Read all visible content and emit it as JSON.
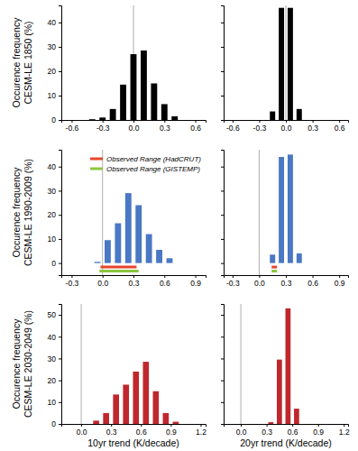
{
  "chart_data": [
    {
      "type": "histogram",
      "color": "#000000",
      "ylabel": [
        "Occurence frequency",
        "CESM-LE 1850 (%)"
      ],
      "bins": [
        -0.45,
        -0.35,
        -0.25,
        -0.15,
        -0.05,
        0.05,
        0.15,
        0.25,
        0.35,
        0.45
      ],
      "values": [
        0.3,
        1,
        4.5,
        14.5,
        27,
        28.5,
        15,
        6.5,
        1.5
      ],
      "xlim": [
        -0.7,
        0.7
      ],
      "xticks": [
        -0.6,
        -0.3,
        {
          "value": 0,
          "label": "0.0"
        },
        0.3,
        0.6
      ],
      "ylim": [
        0,
        47
      ],
      "yticks": [
        0,
        10,
        20,
        30,
        40
      ],
      "vline": 0
    },
    {
      "type": "histogram",
      "color": "#000000",
      "bins": [
        -0.2,
        -0.1,
        0,
        0.1,
        0.2
      ],
      "values": [
        3.5,
        46,
        46,
        4.5
      ],
      "xlim": [
        -0.7,
        0.7
      ],
      "xticks": [
        -0.6,
        -0.3,
        {
          "value": 0,
          "label": "0.0"
        },
        0.3,
        0.6
      ],
      "ylim": [
        0,
        47
      ],
      "yticks": [
        0,
        10,
        20,
        30,
        40
      ],
      "vline": 0,
      "tick_labels": "x"
    },
    {
      "type": "histogram",
      "color": "#4a78c4",
      "ylabel": [
        "Occurence frequency",
        "CESM-LE 1990-2009 (%)"
      ],
      "bins": [
        -0.1,
        0,
        0.1,
        0.2,
        0.3,
        0.4,
        0.5,
        0.6,
        0.7
      ],
      "values": [
        0.5,
        9.5,
        16.5,
        29,
        24,
        12,
        5.5,
        2
      ],
      "xlim": [
        -0.4,
        1.0
      ],
      "xticks": [
        -0.3,
        {
          "value": 0,
          "label": "0.0"
        },
        0.3,
        0.6,
        0.9
      ],
      "ylim": [
        -5,
        47
      ],
      "yticks": [
        0,
        10,
        20,
        30,
        40
      ],
      "vline": 0,
      "observed_ranges": [
        {
          "name": "Observed Range (HadCRUT)",
          "color": "#e8452c",
          "range": [
            -0.02,
            0.33
          ]
        },
        {
          "name": "Observed Range (GISTEMP)",
          "color": "#8cc63f",
          "range": [
            -0.03,
            0.35
          ]
        }
      ],
      "legend": "upper right"
    },
    {
      "type": "histogram",
      "color": "#4a78c4",
      "bins": [
        0.1,
        0.2,
        0.3,
        0.4,
        0.5
      ],
      "values": [
        3.5,
        44,
        45,
        4
      ],
      "xlim": [
        -0.4,
        1.0
      ],
      "xticks": [
        -0.3,
        {
          "value": 0,
          "label": "0.0"
        },
        0.3,
        0.6,
        0.9
      ],
      "ylim": [
        -5,
        47
      ],
      "yticks": [
        0,
        10,
        20,
        30,
        40
      ],
      "vline": 0,
      "tick_labels": "x",
      "observed_ranges": [
        {
          "color": "#e8452c",
          "range": [
            0.14,
            0.2
          ]
        },
        {
          "color": "#8cc63f",
          "range": [
            0.14,
            0.2
          ]
        }
      ]
    },
    {
      "type": "histogram",
      "color": "#c0272d",
      "ylabel": [
        "Occurence frequency",
        "CESM-LE 2030-2049 (%)"
      ],
      "xlabel": "10yr trend (K/decade)",
      "bins": [
        0.1,
        0.2,
        0.3,
        0.4,
        0.5,
        0.6,
        0.7,
        0.8,
        0.9,
        1.0
      ],
      "values": [
        1.5,
        5,
        13.5,
        18,
        24,
        28.5,
        15,
        5,
        1
      ],
      "xlim": [
        -0.2,
        1.25
      ],
      "xticks": [
        {
          "value": 0,
          "label": "0.0"
        },
        0.3,
        0.6,
        0.9,
        1.2
      ],
      "ylim": [
        0,
        55
      ],
      "yticks": [
        0,
        10,
        20,
        30,
        40,
        50
      ],
      "vline": 0
    },
    {
      "type": "histogram",
      "color": "#c0272d",
      "xlabel": "20yr trend (K/decade)",
      "bins": [
        0.3,
        0.4,
        0.5,
        0.6,
        0.7
      ],
      "values": [
        0.8,
        29.5,
        53,
        7
      ],
      "xlim": [
        -0.2,
        1.25
      ],
      "xticks": [
        {
          "value": 0,
          "label": "0.0"
        },
        0.3,
        0.6,
        0.9,
        1.2
      ],
      "ylim": [
        0,
        55
      ],
      "yticks": [
        0,
        10,
        20,
        30,
        40,
        50
      ],
      "vline": 0,
      "tick_labels": "x"
    }
  ]
}
